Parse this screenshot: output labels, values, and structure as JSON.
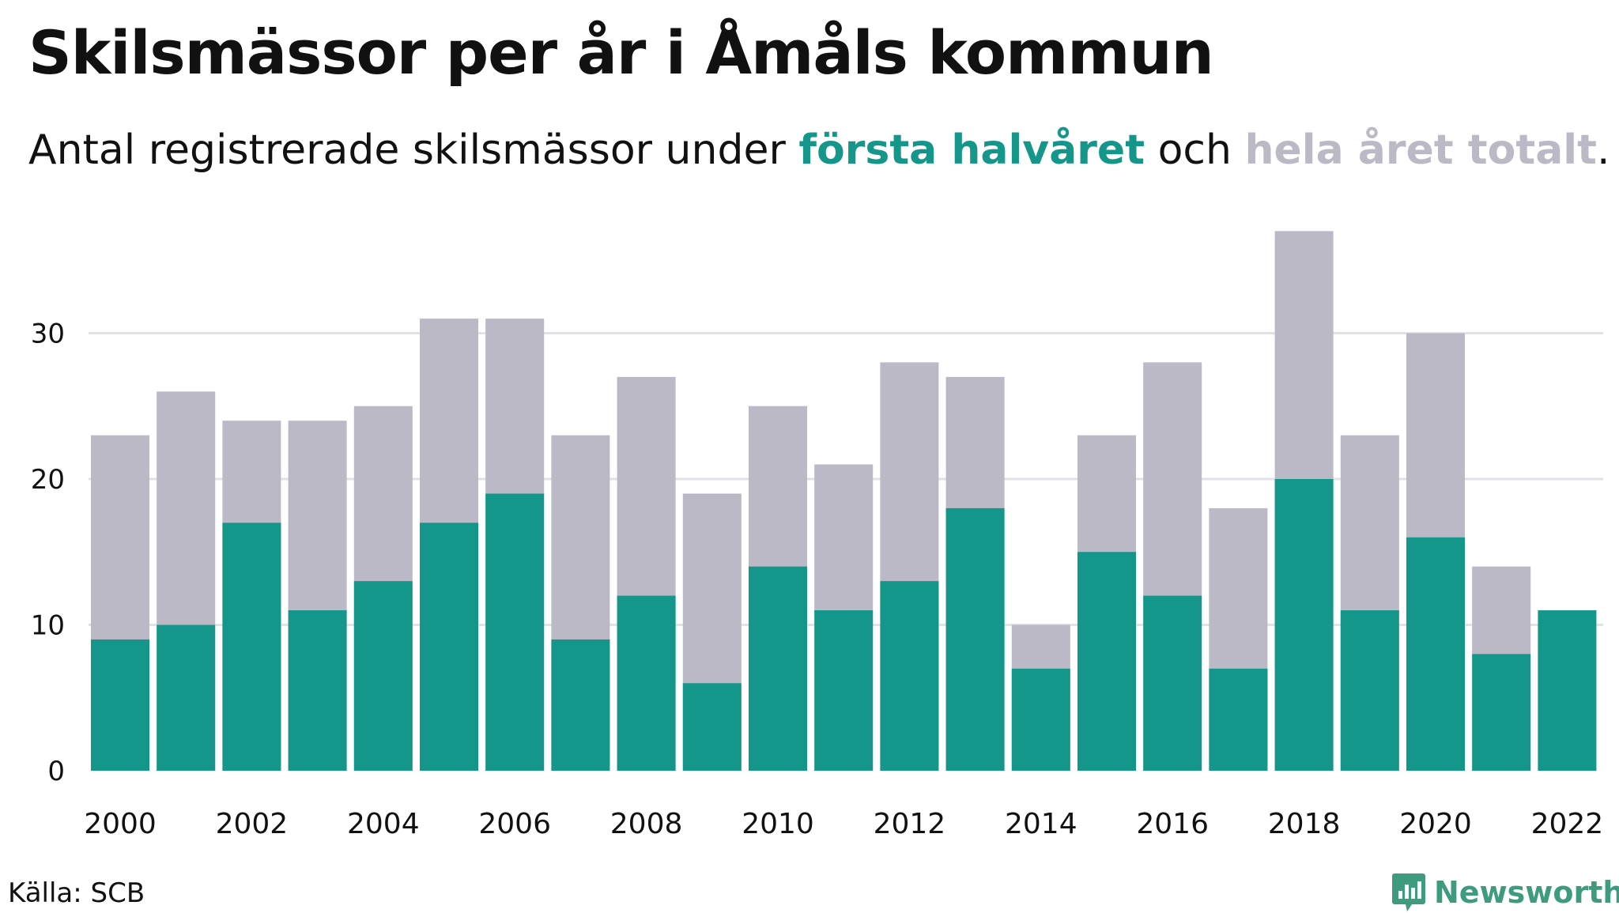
{
  "title": "Skilsmässor per år i Åmåls kommun",
  "subtitle": {
    "prefix": "Antal registrerade skilsmässor under ",
    "first_half": "första halvåret",
    "middle": " och ",
    "total": "hela året totalt",
    "suffix": "."
  },
  "source": "Källa: SCB",
  "brand": "Newsworthy",
  "colors": {
    "first_half": "#14968a",
    "total": "#bbb9c6",
    "grid": "#e2e2e6",
    "text": "#111111",
    "brand": "#3f9b7d"
  },
  "chart_data": {
    "type": "bar",
    "title": "Skilsmässor per år i Åmåls kommun",
    "subtitle": "Antal registrerade skilsmässor under första halvåret och hela året totalt.",
    "categories": [
      2000,
      2001,
      2002,
      2003,
      2004,
      2005,
      2006,
      2007,
      2008,
      2009,
      2010,
      2011,
      2012,
      2013,
      2014,
      2015,
      2016,
      2017,
      2018,
      2019,
      2020,
      2021,
      2022
    ],
    "series": [
      {
        "name": "hela året totalt",
        "color": "#bbb9c6",
        "values": [
          23,
          26,
          24,
          24,
          25,
          31,
          31,
          23,
          27,
          19,
          25,
          21,
          28,
          27,
          10,
          23,
          28,
          18,
          37,
          23,
          30,
          14,
          null
        ]
      },
      {
        "name": "första halvåret",
        "color": "#14968a",
        "values": [
          9,
          10,
          17,
          11,
          13,
          17,
          19,
          9,
          12,
          6,
          14,
          11,
          13,
          18,
          7,
          15,
          12,
          7,
          20,
          11,
          16,
          8,
          11
        ]
      }
    ],
    "ylim": [
      0,
      37
    ],
    "yticks": [
      0,
      10,
      20,
      30
    ],
    "xticks": [
      "2000",
      "2002",
      "2004",
      "2006",
      "2008",
      "2010",
      "2012",
      "2014",
      "2016",
      "2018",
      "2020",
      "2022"
    ],
    "xlabel": "",
    "ylabel": "",
    "grid": true,
    "legend": "in subtitle"
  }
}
